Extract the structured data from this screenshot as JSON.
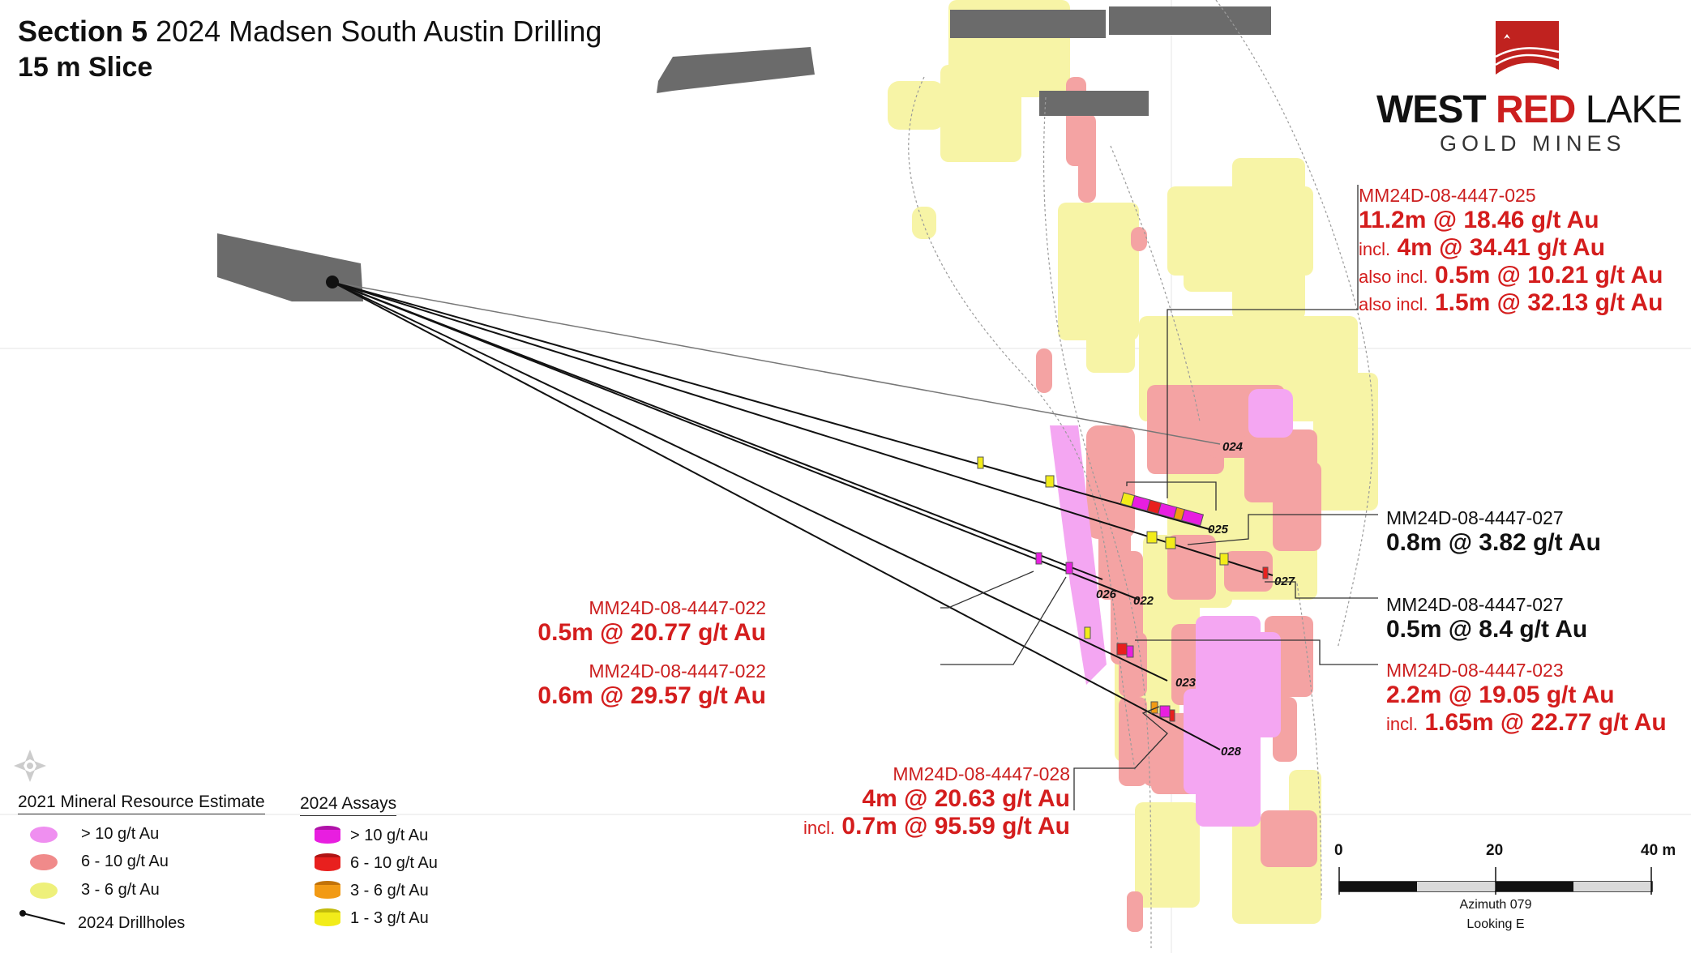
{
  "title": {
    "section": "Section 5",
    "subtitle": "2024 Madsen South Austin Drilling",
    "slice": "15 m Slice"
  },
  "logo": {
    "word1": "WEST",
    "word2": "RED",
    "word3": "LAKE",
    "tagline": "GOLD MINES",
    "icon": "mountain-maple-leaf-icon"
  },
  "hole_tags": [
    "024",
    "025",
    "027",
    "022",
    "026",
    "023",
    "028"
  ],
  "callouts": {
    "c025": {
      "hole": "MM24D-08-4447-025",
      "line1": "11.2m @ 18.46 g/t Au",
      "line2_prefix": "incl.",
      "line2": "4m @ 34.41 g/t Au",
      "line3_prefix": "also incl.",
      "line3": "0.5m @ 10.21 g/t Au",
      "line4_prefix": "also incl.",
      "line4": "1.5m @ 32.13 g/t Au"
    },
    "c027a": {
      "hole": "MM24D-08-4447-027",
      "line1": "0.8m @ 3.82 g/t Au"
    },
    "c027b": {
      "hole": "MM24D-08-4447-027",
      "line1": "0.5m @ 8.4 g/t Au"
    },
    "c023": {
      "hole": "MM24D-08-4447-023",
      "line1": "2.2m @ 19.05 g/t Au",
      "line2_prefix": "incl.",
      "line2": "1.65m @ 22.77 g/t Au"
    },
    "c022a": {
      "hole": "MM24D-08-4447-022",
      "line1": "0.5m @ 20.77 g/t Au"
    },
    "c022b": {
      "hole": "MM24D-08-4447-022",
      "line1": "0.6m @ 29.57 g/t Au"
    },
    "c028": {
      "hole": "MM24D-08-4447-028",
      "line1": "4m @ 20.63 g/t Au",
      "line2_prefix": "incl.",
      "line2": "0.7m @ 95.59 g/t Au"
    }
  },
  "legend_resource": {
    "heading": "2021 Mineral Resource Estimate",
    "items": [
      {
        "label": "> 10 g/t Au",
        "color": "#ef8ff0"
      },
      {
        "label": "6 - 10 g/t Au",
        "color": "#f08a8a"
      },
      {
        "label": "3 - 6 g/t Au",
        "color": "#eef07a"
      },
      {
        "label": "2024 Drillholes",
        "color": "#111111"
      }
    ]
  },
  "legend_assays": {
    "heading": "2024 Assays",
    "items": [
      {
        "label": "> 10 g/t Au",
        "color": "#e81ee0"
      },
      {
        "label": "6 - 10 g/t Au",
        "color": "#e8201e"
      },
      {
        "label": "3 - 6 g/t Au",
        "color": "#f29a14"
      },
      {
        "label": "1 - 3 g/t Au",
        "color": "#f2ec1a"
      }
    ]
  },
  "scale_bar": {
    "ticks": [
      "0",
      "20",
      "40 m"
    ],
    "azimuth": "Azimuth 079",
    "looking": "Looking E"
  },
  "colors": {
    "workings": "#6b6b6b",
    "resource_high": "#f4a6f2",
    "resource_mid": "#f4a3a3",
    "resource_low": "#f7f4a6",
    "callout_red": "#d41d1d"
  },
  "north_arrow_icon": "compass-rose-icon"
}
